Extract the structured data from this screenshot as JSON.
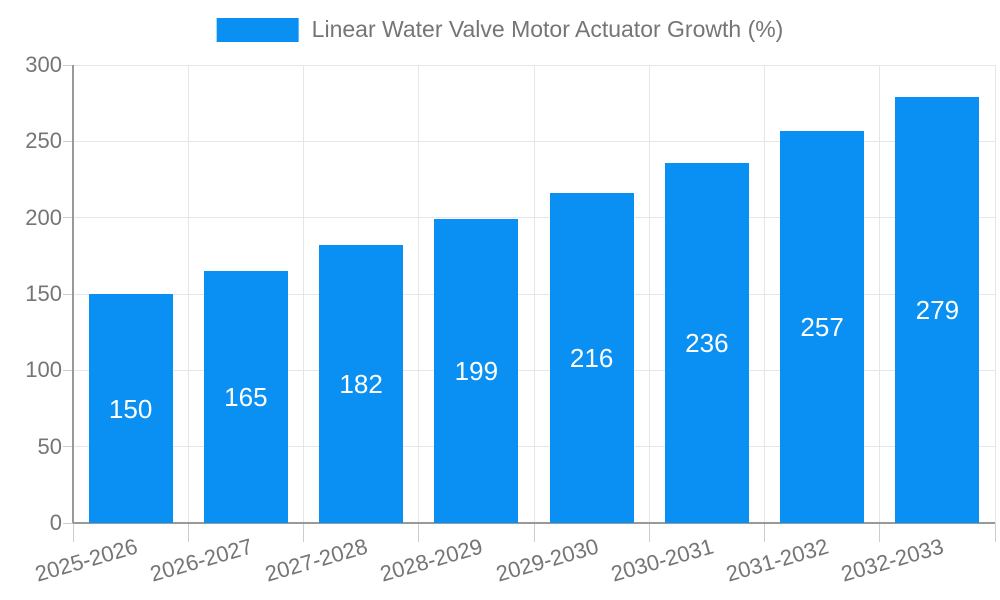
{
  "chart_data": {
    "type": "bar",
    "title": "Linear Water Valve Motor Actuator Growth (%)",
    "legend": {
      "position": "top",
      "label": "Linear Water Valve Motor Actuator Growth (%)"
    },
    "categories": [
      "2025-2026",
      "2026-2027",
      "2027-2028",
      "2028-2029",
      "2029-2030",
      "2030-2031",
      "2031-2032",
      "2032-2033"
    ],
    "values": [
      150,
      165,
      182,
      199,
      216,
      236,
      257,
      279
    ],
    "value_labels": [
      "150",
      "165",
      "182",
      "199",
      "216",
      "236",
      "257",
      "279"
    ],
    "ylim": [
      0,
      300
    ],
    "ytick_interval": 50,
    "ytick_labels": [
      "0",
      "50",
      "100",
      "150",
      "200",
      "250",
      "300"
    ],
    "grid": true,
    "x_label_rotation_deg": -16,
    "colors": {
      "bar": "#0990f2",
      "value_label": "#ffffff",
      "axis": "#999999",
      "gridline": "#e6e6e6",
      "tick": "#cccccc",
      "text": "#757575",
      "background": "#ffffff"
    }
  }
}
